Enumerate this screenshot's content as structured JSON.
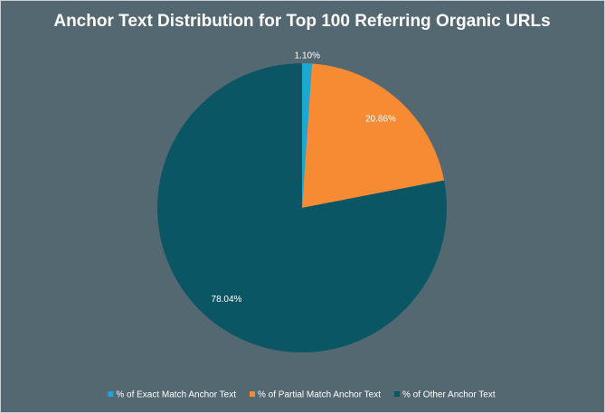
{
  "chart_data": {
    "type": "pie",
    "title": "Anchor Text Distribution for Top 100 Referring Organic URLs",
    "categories": [
      "% of Exact Match Anchor Text",
      "% of Partial Match Anchor Text",
      "% of Other Anchor Text"
    ],
    "values": [
      1.1,
      20.86,
      78.04
    ],
    "value_labels": [
      "1.10%",
      "20.86%",
      "78.04%"
    ],
    "colors": [
      "#1ba8d5",
      "#f68b33",
      "#0b5664"
    ],
    "legend": "bottom"
  }
}
